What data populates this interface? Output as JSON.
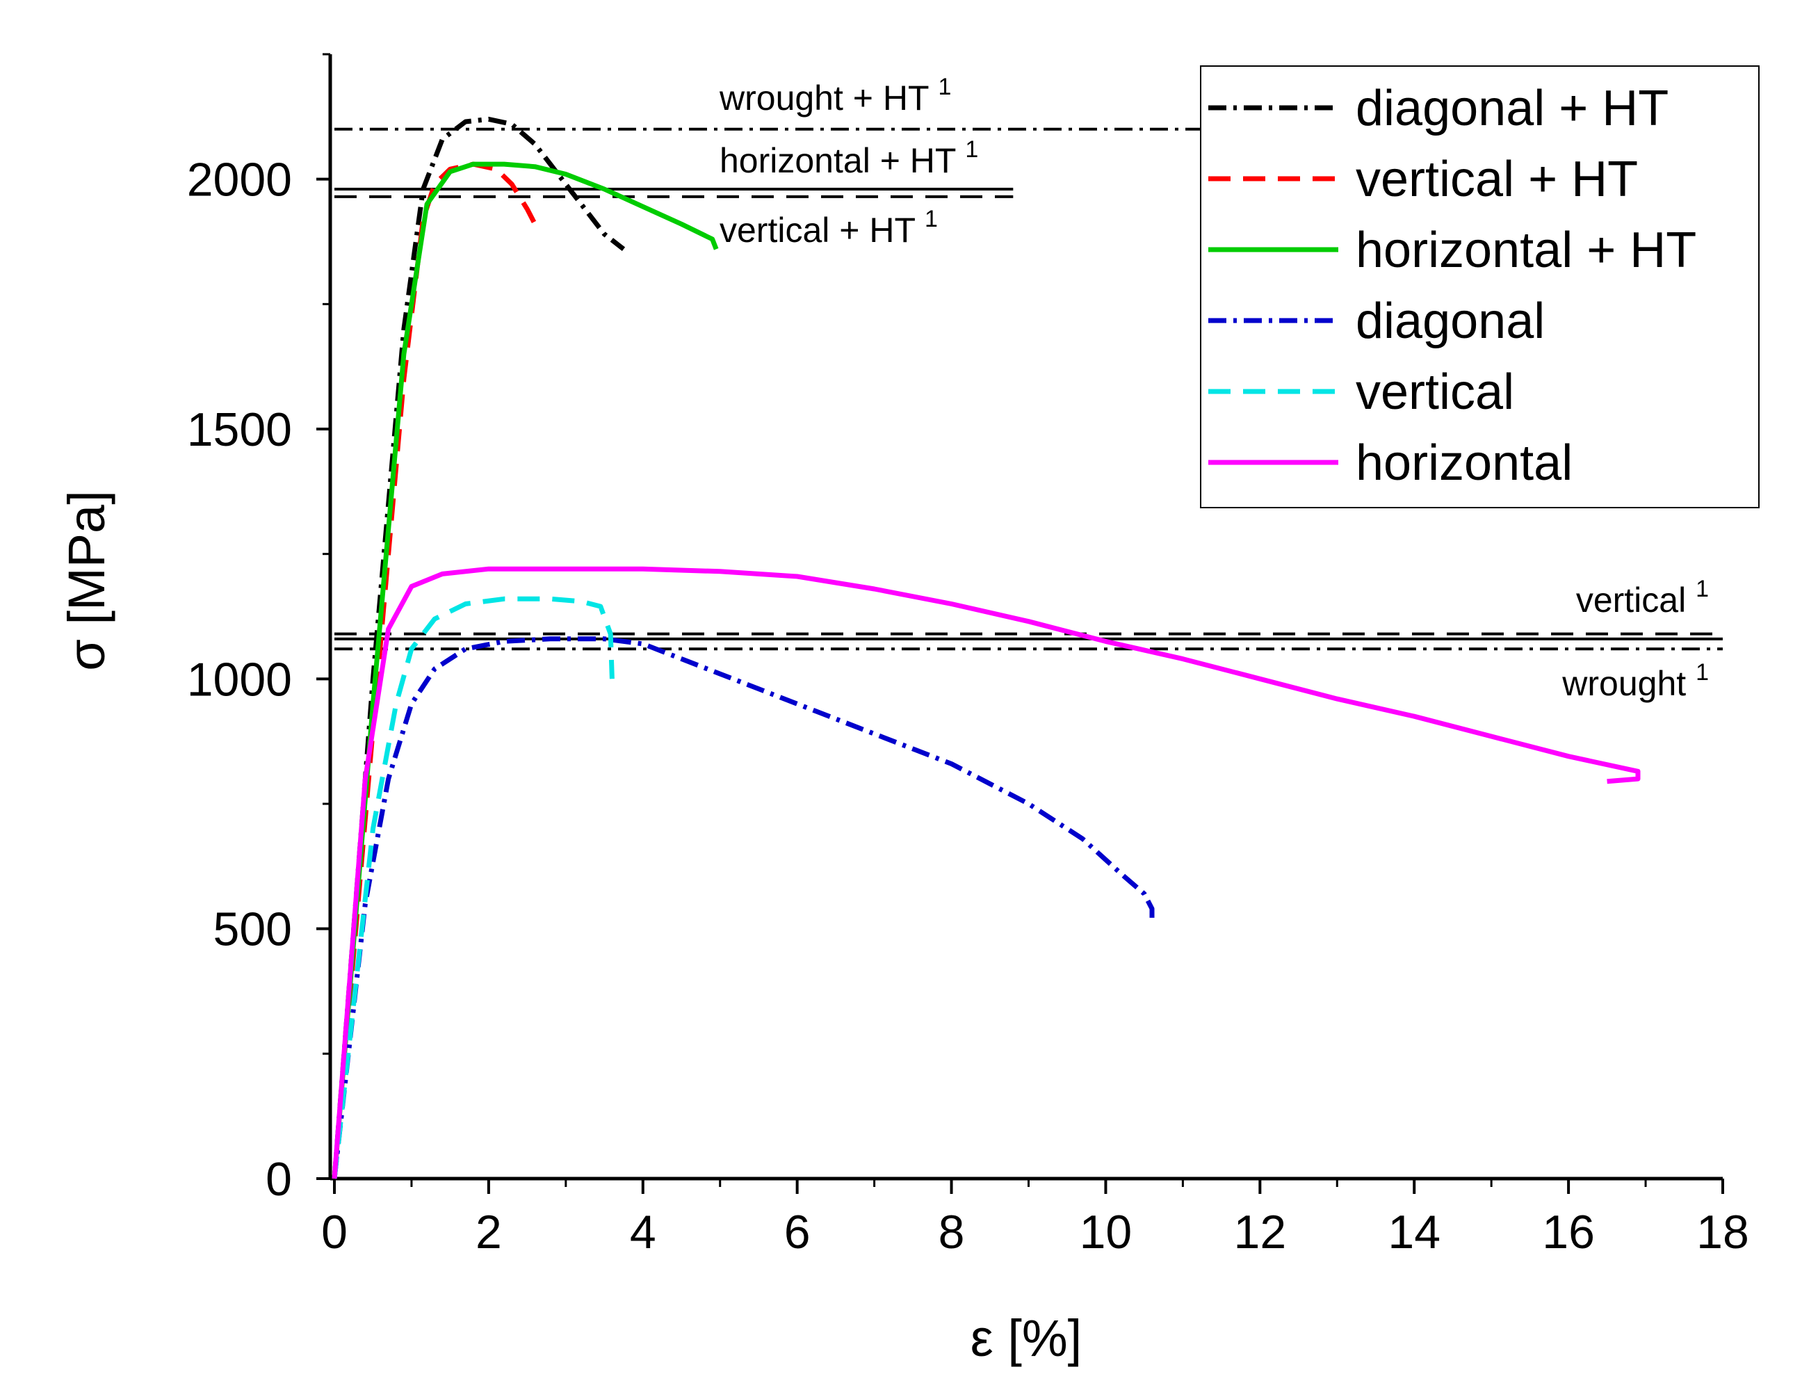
{
  "chart_data": {
    "type": "line",
    "xlabel": "ε [%]",
    "ylabel": "σ [MPa]",
    "xlim": [
      0,
      18
    ],
    "ylim": [
      0,
      2250
    ],
    "xticks": [
      0,
      2,
      4,
      6,
      8,
      10,
      12,
      14,
      16,
      18
    ],
    "yticks": [
      0,
      500,
      1000,
      1500,
      2000
    ],
    "legend_position": "top-right",
    "series": [
      {
        "name": "diagonal + HT",
        "color": "#000000",
        "dash": "dashdot",
        "x": [
          0,
          0.5,
          0.9,
          1.15,
          1.4,
          1.7,
          2.0,
          2.3,
          2.6,
          2.9,
          3.2,
          3.5,
          3.75
        ],
        "y": [
          0,
          1000,
          1700,
          1980,
          2080,
          2115,
          2120,
          2110,
          2070,
          2010,
          1950,
          1890,
          1860
        ]
      },
      {
        "name": "vertical + HT",
        "color": "#ff0000",
        "dash": "dashed",
        "x": [
          0,
          0.5,
          0.9,
          1.15,
          1.3,
          1.5,
          1.8,
          2.1,
          2.3,
          2.5,
          2.6
        ],
        "y": [
          0,
          900,
          1600,
          1920,
          1990,
          2020,
          2030,
          2020,
          1990,
          1940,
          1910
        ]
      },
      {
        "name": "horizontal + HT",
        "color": "#00cc00",
        "dash": "solid",
        "x": [
          0,
          0.5,
          0.9,
          1.2,
          1.5,
          1.8,
          2.2,
          2.6,
          3.0,
          3.5,
          4.0,
          4.5,
          4.9,
          4.95
        ],
        "y": [
          0,
          950,
          1650,
          1950,
          2015,
          2030,
          2030,
          2025,
          2010,
          1980,
          1945,
          1910,
          1880,
          1860
        ]
      },
      {
        "name": "diagonal",
        "color": "#0000cc",
        "dash": "dashdot",
        "x": [
          0,
          0.4,
          0.7,
          1.0,
          1.3,
          1.7,
          2.2,
          2.8,
          3.5,
          4.0,
          5.0,
          6.0,
          7.0,
          8.0,
          9.0,
          9.7,
          10.2,
          10.5,
          10.6,
          10.6
        ],
        "y": [
          0,
          550,
          800,
          950,
          1020,
          1060,
          1075,
          1080,
          1080,
          1070,
          1010,
          950,
          890,
          830,
          750,
          680,
          610,
          570,
          540,
          510
        ]
      },
      {
        "name": "vertical",
        "color": "#00e5e5",
        "dash": "dashed",
        "x": [
          0,
          0.5,
          0.8,
          1.0,
          1.3,
          1.7,
          2.2,
          2.8,
          3.2,
          3.45,
          3.58,
          3.6
        ],
        "y": [
          0,
          700,
          950,
          1060,
          1120,
          1150,
          1160,
          1160,
          1155,
          1145,
          1090,
          1000
        ]
      },
      {
        "name": "horizontal",
        "color": "#ff00ff",
        "dash": "solid",
        "x": [
          0,
          0.4,
          0.7,
          1.0,
          1.4,
          2.0,
          3.0,
          4.0,
          5.0,
          6.0,
          7.0,
          8.0,
          9.0,
          10.0,
          11.0,
          12.0,
          13.0,
          14.0,
          15.0,
          16.0,
          16.9,
          16.9,
          16.5
        ],
        "y": [
          0,
          800,
          1100,
          1185,
          1210,
          1220,
          1220,
          1220,
          1215,
          1205,
          1180,
          1150,
          1115,
          1075,
          1040,
          1000,
          960,
          925,
          885,
          845,
          815,
          800,
          795
        ]
      }
    ],
    "reference_lines": [
      {
        "label": "wrought + HT",
        "sup": "1",
        "value": 2100,
        "x_end": 18,
        "dash": "dashdot"
      },
      {
        "label": "horizontal + HT",
        "sup": "1",
        "value": 1980,
        "x_end": 8.8,
        "dash": "solid"
      },
      {
        "label": "vertical + HT",
        "sup": "1",
        "value": 1965,
        "x_end": 8.8,
        "dash": "dashed"
      },
      {
        "label": "vertical",
        "sup": "1",
        "value": 1090,
        "x_end": 18,
        "dash": "dashed"
      },
      {
        "label": "",
        "sup": "",
        "value": 1080,
        "x_end": 18,
        "dash": "solid"
      },
      {
        "label": "wrought",
        "sup": "1",
        "value": 1060,
        "x_end": 18,
        "dash": "dashdot"
      }
    ]
  }
}
